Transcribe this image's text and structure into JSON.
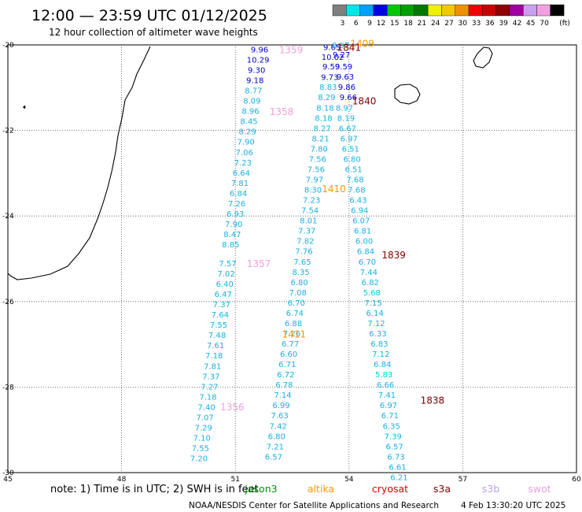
{
  "header": {
    "title": "12:00 — 23:59 UTC 01/12/2025",
    "subtitle": "12 hour collection of altimeter wave heights"
  },
  "color_scale": {
    "unit": "(ft)",
    "bins": [
      {
        "label": "3",
        "color": "#7f7f7f"
      },
      {
        "label": "6",
        "color": "#00e5e5"
      },
      {
        "label": "9",
        "color": "#00a0ff"
      },
      {
        "label": "12",
        "color": "#0000e0"
      },
      {
        "label": "15",
        "color": "#00c800"
      },
      {
        "label": "18",
        "color": "#00a000"
      },
      {
        "label": "21",
        "color": "#007800"
      },
      {
        "label": "24",
        "color": "#f0f000"
      },
      {
        "label": "27",
        "color": "#f0c800"
      },
      {
        "label": "30",
        "color": "#f09000"
      },
      {
        "label": "33",
        "color": "#f00000"
      },
      {
        "label": "36",
        "color": "#c80000"
      },
      {
        "label": "39",
        "color": "#900000"
      },
      {
        "label": "42",
        "color": "#a000a0"
      },
      {
        "label": "45",
        "color": "#c8a0f0"
      },
      {
        "label": "70",
        "color": "#f0a0e0"
      },
      {
        "label": "",
        "color": "#000000"
      }
    ]
  },
  "footer": {
    "note": "note:  1) Time is in UTC; 2) SWH is in feet",
    "legend": [
      {
        "name": "jason3",
        "color": "#009000"
      },
      {
        "name": "altika",
        "color": "#ff9900"
      },
      {
        "name": "cryosat",
        "color": "#dd0000"
      },
      {
        "name": "s3a",
        "color": "#800000"
      },
      {
        "name": "s3b",
        "color": "#b8a0e8"
      },
      {
        "name": "swot",
        "color": "#f0a0dc"
      }
    ],
    "credit": "NOAA/NESDIS Center for Satellite Applications and Research",
    "timestamp": "4 Feb 13:30:20 UTC 2025"
  },
  "chart_data": {
    "type": "scatter",
    "xlim": [
      45,
      60
    ],
    "ylim": [
      -30,
      -20
    ],
    "x_ticks": [
      45,
      48,
      51,
      54,
      57,
      60
    ],
    "y_ticks": [
      -20,
      -22,
      -24,
      -26,
      -28,
      -30
    ],
    "grid": true,
    "tracks": [
      {
        "satellite": "swot",
        "pass_label": "1359",
        "label_at": [
          52.47,
          -20.1
        ],
        "color": "#f0a0dc",
        "points": [
          {
            "lon": 51.64,
            "lat": -20.1,
            "v": "9.96"
          },
          {
            "lon": 51.6,
            "lat": -20.34,
            "v": "10.29"
          },
          {
            "lon": 51.56,
            "lat": -20.58,
            "v": "9.30"
          },
          {
            "lon": 51.52,
            "lat": -20.82,
            "v": "9.18"
          },
          {
            "lon": 51.48,
            "lat": -21.06,
            "v": "8.77"
          },
          {
            "lon": 51.44,
            "lat": -21.3,
            "v": "8.09"
          },
          {
            "lon": 51.4,
            "lat": -21.54,
            "v": "8.96"
          },
          {
            "lon": 51.36,
            "lat": -21.78,
            "v": "8.45"
          }
        ]
      },
      {
        "satellite": "swot",
        "pass_label": "1358",
        "label_at": [
          52.22,
          -21.55
        ],
        "color": "#f0a0dc",
        "points": [
          {
            "lon": 51.32,
            "lat": -22.02,
            "v": "8.29"
          },
          {
            "lon": 51.28,
            "lat": -22.26,
            "v": "7.90"
          },
          {
            "lon": 51.24,
            "lat": -22.5,
            "v": "7.06"
          },
          {
            "lon": 51.2,
            "lat": -22.74,
            "v": "7.23"
          },
          {
            "lon": 51.16,
            "lat": -22.98,
            "v": "6.64"
          },
          {
            "lon": 51.12,
            "lat": -23.22,
            "v": "7.81"
          },
          {
            "lon": 51.08,
            "lat": -23.46,
            "v": "6.84"
          },
          {
            "lon": 51.04,
            "lat": -23.7,
            "v": "7.26"
          },
          {
            "lon": 51.0,
            "lat": -23.94,
            "v": "6.93"
          },
          {
            "lon": 50.96,
            "lat": -24.18,
            "v": "7.90"
          },
          {
            "lon": 50.92,
            "lat": -24.42,
            "v": "8.47"
          },
          {
            "lon": 50.88,
            "lat": -24.66,
            "v": "8.85"
          }
        ]
      },
      {
        "satellite": "swot",
        "pass_label": "1357",
        "label_at": [
          51.62,
          -25.1
        ],
        "color": "#f0a0dc",
        "points": [
          {
            "lon": 50.8,
            "lat": -25.1,
            "v": "7.57"
          },
          {
            "lon": 50.76,
            "lat": -25.34,
            "v": "7.02"
          },
          {
            "lon": 50.72,
            "lat": -25.58,
            "v": "6.40"
          },
          {
            "lon": 50.68,
            "lat": -25.82,
            "v": "6.47"
          },
          {
            "lon": 50.64,
            "lat": -26.06,
            "v": "7.37"
          },
          {
            "lon": 50.6,
            "lat": -26.3,
            "v": "7.64"
          },
          {
            "lon": 50.56,
            "lat": -26.54,
            "v": "7.55"
          },
          {
            "lon": 50.52,
            "lat": -26.78,
            "v": "7.48"
          },
          {
            "lon": 50.48,
            "lat": -27.02,
            "v": "7.61"
          },
          {
            "lon": 50.44,
            "lat": -27.26,
            "v": "7.18"
          },
          {
            "lon": 50.4,
            "lat": -27.5,
            "v": "7.81"
          },
          {
            "lon": 50.36,
            "lat": -27.74,
            "v": "7.37"
          },
          {
            "lon": 50.32,
            "lat": -27.98,
            "v": "7.27"
          }
        ]
      },
      {
        "satellite": "swot",
        "pass_label": "1356",
        "label_at": [
          50.92,
          -28.45
        ],
        "color": "#f0a0dc",
        "points": [
          {
            "lon": 50.28,
            "lat": -28.22,
            "v": "7.18"
          },
          {
            "lon": 50.24,
            "lat": -28.46,
            "v": "7.40"
          },
          {
            "lon": 50.2,
            "lat": -28.7,
            "v": "7.07"
          },
          {
            "lon": 50.16,
            "lat": -28.94,
            "v": "7.29"
          },
          {
            "lon": 50.12,
            "lat": -29.18,
            "v": "7.10"
          },
          {
            "lon": 50.08,
            "lat": -29.42,
            "v": "7.55"
          },
          {
            "lon": 50.04,
            "lat": -29.66,
            "v": "7.20"
          }
        ]
      },
      {
        "satellite": "altika",
        "pass_label": "1409",
        "label_at": [
          54.35,
          -19.95
        ],
        "color": "#ff9900",
        "points": [
          {
            "lon": 53.55,
            "lat": -20.05,
            "v": "9.65"
          },
          {
            "lon": 53.57,
            "lat": -20.28,
            "v": "10.02"
          },
          {
            "lon": 53.53,
            "lat": -20.5,
            "v": "9.59"
          },
          {
            "lon": 53.49,
            "lat": -20.75,
            "v": "9.73"
          },
          {
            "lon": 53.45,
            "lat": -20.98,
            "v": "8.83"
          },
          {
            "lon": 53.41,
            "lat": -21.22,
            "v": "8.29"
          },
          {
            "lon": 53.37,
            "lat": -21.46,
            "v": "8.18"
          },
          {
            "lon": 53.33,
            "lat": -21.7,
            "v": "8.18"
          },
          {
            "lon": 53.29,
            "lat": -21.94,
            "v": "8.27"
          },
          {
            "lon": 53.25,
            "lat": -22.18,
            "v": "8.21"
          },
          {
            "lon": 53.21,
            "lat": -22.42,
            "v": "7.80"
          },
          {
            "lon": 53.17,
            "lat": -22.66,
            "v": "7.56"
          },
          {
            "lon": 53.13,
            "lat": -22.9,
            "v": "7.56"
          },
          {
            "lon": 53.09,
            "lat": -23.14,
            "v": "7.97"
          },
          {
            "lon": 53.05,
            "lat": -23.38,
            "v": "8.30"
          },
          {
            "lon": 53.01,
            "lat": -23.62,
            "v": "7.23"
          }
        ]
      },
      {
        "satellite": "altika",
        "pass_label": "1410",
        "label_at": [
          53.6,
          -23.35
        ],
        "color": "#ff9900",
        "points": [
          {
            "lon": 52.97,
            "lat": -23.86,
            "v": "7.54"
          },
          {
            "lon": 52.93,
            "lat": -24.1,
            "v": "8.01"
          },
          {
            "lon": 52.89,
            "lat": -24.34,
            "v": "7.37"
          },
          {
            "lon": 52.85,
            "lat": -24.58,
            "v": "7.82"
          },
          {
            "lon": 52.81,
            "lat": -24.82,
            "v": "7.76"
          },
          {
            "lon": 52.77,
            "lat": -25.06,
            "v": "7.65"
          },
          {
            "lon": 52.73,
            "lat": -25.3,
            "v": "8.35"
          },
          {
            "lon": 52.69,
            "lat": -25.54,
            "v": "6.80"
          },
          {
            "lon": 52.65,
            "lat": -25.78,
            "v": "7.08"
          },
          {
            "lon": 52.61,
            "lat": -26.02,
            "v": "6.70"
          },
          {
            "lon": 52.57,
            "lat": -26.26,
            "v": "6.74"
          },
          {
            "lon": 52.53,
            "lat": -26.5,
            "v": "6.88"
          },
          {
            "lon": 52.49,
            "lat": -26.74,
            "v": "7.26"
          }
        ]
      },
      {
        "satellite": "altika",
        "pass_label": "1411",
        "label_at": [
          52.55,
          -26.75
        ],
        "color": "#ff9900",
        "points": [
          {
            "lon": 52.45,
            "lat": -26.98,
            "v": "6.77"
          },
          {
            "lon": 52.41,
            "lat": -27.22,
            "v": "6.60"
          },
          {
            "lon": 52.37,
            "lat": -27.46,
            "v": "6.71"
          },
          {
            "lon": 52.33,
            "lat": -27.7,
            "v": "6.72"
          },
          {
            "lon": 52.29,
            "lat": -27.94,
            "v": "6.78"
          },
          {
            "lon": 52.25,
            "lat": -28.18,
            "v": "7.14"
          },
          {
            "lon": 52.21,
            "lat": -28.42,
            "v": "6.99"
          },
          {
            "lon": 52.17,
            "lat": -28.66,
            "v": "7.63"
          },
          {
            "lon": 52.13,
            "lat": -28.9,
            "v": "7.42"
          },
          {
            "lon": 52.09,
            "lat": -29.14,
            "v": "6.80"
          },
          {
            "lon": 52.05,
            "lat": -29.38,
            "v": "7.21"
          },
          {
            "lon": 52.01,
            "lat": -29.62,
            "v": "6.57"
          }
        ]
      },
      {
        "satellite": "s3a",
        "pass_label": "1841",
        "label_at": [
          54.0,
          -20.05
        ],
        "color": "#800000",
        "points": [
          {
            "lon": 53.78,
            "lat": -20.0,
            "v": "8.97"
          },
          {
            "lon": 53.8,
            "lat": -20.22,
            "v": "9.27"
          },
          {
            "lon": 53.86,
            "lat": -20.5,
            "v": "9.59"
          },
          {
            "lon": 53.9,
            "lat": -20.74,
            "v": "9.63"
          },
          {
            "lon": 53.94,
            "lat": -20.98,
            "v": "9.86"
          },
          {
            "lon": 53.98,
            "lat": -21.22,
            "v": "9.66"
          }
        ]
      },
      {
        "satellite": "s3a",
        "pass_label": "1840",
        "label_at": [
          54.4,
          -21.3
        ],
        "color": "#800000",
        "points": [
          {
            "lon": 53.88,
            "lat": -21.46,
            "v": "8.97"
          },
          {
            "lon": 53.92,
            "lat": -21.7,
            "v": "8.19"
          },
          {
            "lon": 53.96,
            "lat": -21.94,
            "v": "6.67"
          },
          {
            "lon": 54.0,
            "lat": -22.18,
            "v": "6.97"
          },
          {
            "lon": 54.04,
            "lat": -22.42,
            "v": "6.51"
          },
          {
            "lon": 54.08,
            "lat": -22.66,
            "v": "6.80"
          },
          {
            "lon": 54.12,
            "lat": -22.9,
            "v": "6.51"
          },
          {
            "lon": 54.16,
            "lat": -23.14,
            "v": "7.68"
          },
          {
            "lon": 54.2,
            "lat": -23.38,
            "v": "7.68"
          },
          {
            "lon": 54.24,
            "lat": -23.62,
            "v": "6.43"
          },
          {
            "lon": 54.28,
            "lat": -23.86,
            "v": "6.94"
          },
          {
            "lon": 54.32,
            "lat": -24.1,
            "v": "6.07"
          },
          {
            "lon": 54.36,
            "lat": -24.34,
            "v": "6.81"
          },
          {
            "lon": 54.4,
            "lat": -24.58,
            "v": "6.00"
          }
        ]
      },
      {
        "satellite": "s3a",
        "pass_label": "1839",
        "label_at": [
          55.18,
          -24.9
        ],
        "color": "#800000",
        "points": [
          {
            "lon": 54.44,
            "lat": -24.82,
            "v": "6.84"
          },
          {
            "lon": 54.48,
            "lat": -25.06,
            "v": "6.70"
          },
          {
            "lon": 54.52,
            "lat": -25.3,
            "v": "7.44"
          },
          {
            "lon": 54.56,
            "lat": -25.54,
            "v": "6.82"
          },
          {
            "lon": 54.6,
            "lat": -25.78,
            "v": "5.68"
          },
          {
            "lon": 54.64,
            "lat": -26.02,
            "v": "7.15"
          },
          {
            "lon": 54.68,
            "lat": -26.26,
            "v": "6.14"
          },
          {
            "lon": 54.72,
            "lat": -26.5,
            "v": "7.12"
          },
          {
            "lon": 54.76,
            "lat": -26.74,
            "v": "6.33"
          },
          {
            "lon": 54.8,
            "lat": -26.98,
            "v": "6.83"
          },
          {
            "lon": 54.84,
            "lat": -27.22,
            "v": "7.12"
          },
          {
            "lon": 54.88,
            "lat": -27.46,
            "v": "6.84"
          },
          {
            "lon": 54.92,
            "lat": -27.7,
            "v": "5.83"
          },
          {
            "lon": 54.96,
            "lat": -27.94,
            "v": "6.66"
          },
          {
            "lon": 55.0,
            "lat": -28.18,
            "v": "7.41"
          }
        ]
      },
      {
        "satellite": "s3a",
        "pass_label": "1838",
        "label_at": [
          56.2,
          -28.3
        ],
        "color": "#800000",
        "points": [
          {
            "lon": 55.04,
            "lat": -28.42,
            "v": "6.97"
          },
          {
            "lon": 55.08,
            "lat": -28.66,
            "v": "6.71"
          },
          {
            "lon": 55.12,
            "lat": -28.9,
            "v": "6.35"
          },
          {
            "lon": 55.16,
            "lat": -29.14,
            "v": "7.39"
          },
          {
            "lon": 55.2,
            "lat": -29.38,
            "v": "6.57"
          },
          {
            "lon": 55.24,
            "lat": -29.62,
            "v": "6.73"
          },
          {
            "lon": 55.28,
            "lat": -29.86,
            "v": "6.61"
          },
          {
            "lon": 55.32,
            "lat": -30.1,
            "v": "6.21"
          }
        ]
      }
    ]
  }
}
